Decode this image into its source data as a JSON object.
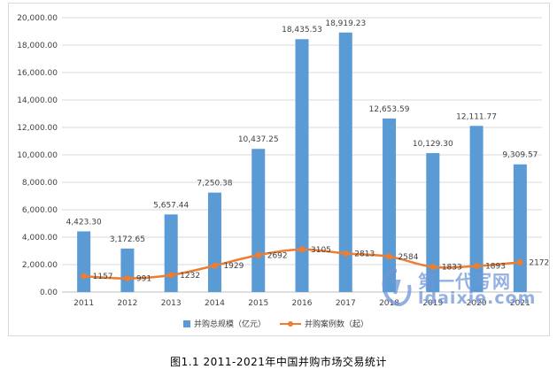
{
  "caption": "图1.1 2011-2021年中国并购市场交易统计",
  "watermark": {
    "line1": "第一代写网",
    "line2": "ldaixie.com"
  },
  "colors": {
    "bar": "#5b9bd5",
    "line": "#ed7d31",
    "grid": "#d9d9d9",
    "axis": "#bfbfbf",
    "text": "#404040"
  },
  "chart_data": {
    "type": "bar",
    "categories": [
      "2011",
      "2012",
      "2013",
      "2014",
      "2015",
      "2016",
      "2017",
      "2018",
      "2019",
      "2020",
      "2021"
    ],
    "y_ticks": [
      "0.00",
      "2,000.00",
      "4,000.00",
      "6,000.00",
      "8,000.00",
      "10,000.00",
      "12,000.00",
      "14,000.00",
      "16,000.00",
      "18,000.00",
      "20,000.00"
    ],
    "ylim": [
      0,
      20000
    ],
    "grid": true,
    "legend_position": "bottom",
    "series": [
      {
        "name": "并购总规模（亿元）",
        "type": "bar",
        "values": [
          4423.3,
          3172.65,
          5657.44,
          7250.38,
          10437.25,
          18435.53,
          18919.23,
          12653.59,
          10129.3,
          12111.77,
          9309.57
        ],
        "labels": [
          "4,423.30",
          "3,172.65",
          "5,657.44",
          "7,250.38",
          "10,437.25",
          "18,435.53",
          "18,919.23",
          "12,653.59",
          "10,129.30",
          "12,111.77",
          "9,309.57"
        ]
      },
      {
        "name": "并购案例数（起）",
        "type": "line",
        "values": [
          1157,
          991,
          1232,
          1929,
          2692,
          3105,
          2813,
          2584,
          1833,
          1893,
          2172
        ],
        "labels": [
          "1157",
          "991",
          "1232",
          "1929",
          "2692",
          "3105",
          "2813",
          "2584",
          "1833",
          "1893",
          "2172"
        ]
      }
    ]
  }
}
